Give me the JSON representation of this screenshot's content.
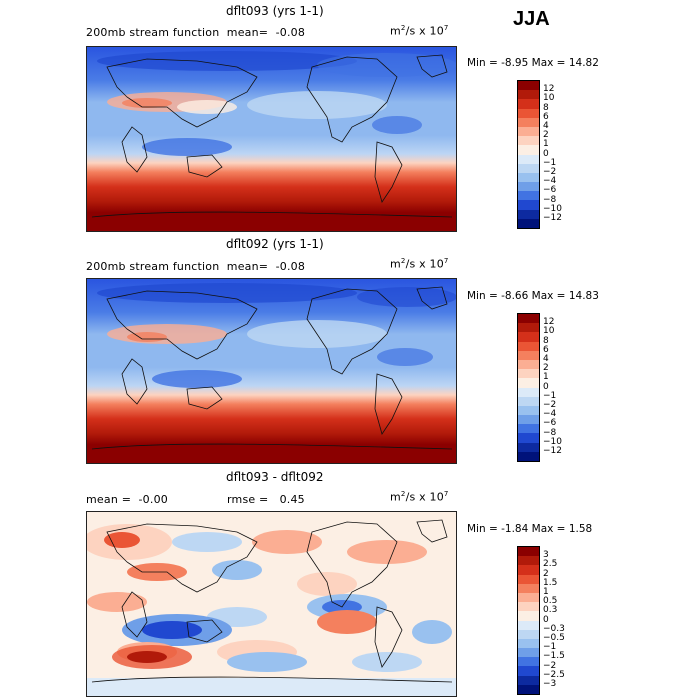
{
  "season": "JJA",
  "panels": [
    {
      "title": "dflt093 (yrs 1-1)",
      "left_label": "200mb stream function",
      "mean_label": "mean=",
      "mean_value": "-0.08",
      "units_base": "m",
      "units_sup1": "2",
      "units_mid": "/s x 10",
      "units_sup2": "7",
      "min_label": "Min =",
      "min_value": "-8.95",
      "max_label": "Max =",
      "max_value": "14.82",
      "colorbar": {
        "labels": [
          "12",
          "10",
          "8",
          "6",
          "4",
          "2",
          "1",
          "0",
          "−1",
          "−2",
          "−4",
          "−6",
          "−8",
          "−10",
          "−12"
        ],
        "colors": [
          "#8b0000",
          "#b11a0a",
          "#d4301a",
          "#ea5535",
          "#f4805e",
          "#fbae93",
          "#fdd3c0",
          "#fcefe4",
          "#dceaf8",
          "#bdd7f3",
          "#99c1ef",
          "#6f9fe8",
          "#4173e2",
          "#2048d0",
          "#0d2aa0",
          "#00127a"
        ]
      }
    },
    {
      "title": "dflt092 (yrs 1-1)",
      "left_label": "200mb stream function",
      "mean_label": "mean=",
      "mean_value": "-0.08",
      "units_base": "m",
      "units_sup1": "2",
      "units_mid": "/s x 10",
      "units_sup2": "7",
      "min_label": "Min =",
      "min_value": "-8.66",
      "max_label": "Max =",
      "max_value": "14.83",
      "colorbar": {
        "labels": [
          "12",
          "10",
          "8",
          "6",
          "4",
          "2",
          "1",
          "0",
          "−1",
          "−2",
          "−4",
          "−6",
          "−8",
          "−10",
          "−12"
        ],
        "colors": [
          "#8b0000",
          "#b11a0a",
          "#d4301a",
          "#ea5535",
          "#f4805e",
          "#fbae93",
          "#fdd3c0",
          "#fcefe4",
          "#dceaf8",
          "#bdd7f3",
          "#99c1ef",
          "#6f9fe8",
          "#4173e2",
          "#2048d0",
          "#0d2aa0",
          "#00127a"
        ]
      }
    },
    {
      "title": "dflt093 - dflt092",
      "mean_label": "mean =",
      "mean_value": "-0.00",
      "rmse_label": "rmse =",
      "rmse_value": "0.45",
      "units_base": "m",
      "units_sup1": "2",
      "units_mid": "/s x 10",
      "units_sup2": "7",
      "min_label": "Min =",
      "min_value": "-1.84",
      "max_label": "Max =",
      "max_value": "1.58",
      "colorbar": {
        "labels": [
          "3",
          "2.5",
          "2",
          "1.5",
          "1",
          "0.5",
          "0.3",
          "0",
          "−0.3",
          "−0.5",
          "−1",
          "−1.5",
          "−2",
          "−2.5",
          "−3"
        ],
        "colors": [
          "#8b0000",
          "#b11a0a",
          "#d4301a",
          "#ea5535",
          "#f4805e",
          "#fbae93",
          "#fdd3c0",
          "#fcefe4",
          "#dceaf8",
          "#bdd7f3",
          "#99c1ef",
          "#6f9fe8",
          "#4173e2",
          "#2048d0",
          "#0d2aa0",
          "#00127a"
        ]
      }
    }
  ]
}
